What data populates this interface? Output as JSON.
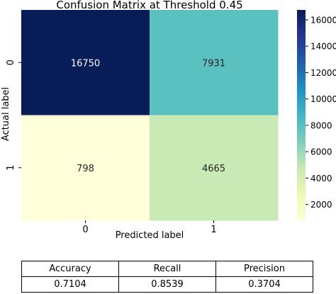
{
  "chart_data": {
    "type": "heatmap",
    "title": "Confusion Matrix at Threshold 0.45",
    "xlabel": "Predicted label",
    "ylabel": "Actual label",
    "x_categories": [
      "0",
      "1"
    ],
    "y_categories": [
      "0",
      "1"
    ],
    "values": [
      [
        16750,
        7931
      ],
      [
        798,
        4665
      ]
    ],
    "colormap": "YlGnBu",
    "colorbar": {
      "range": [
        798,
        16750
      ],
      "ticks": [
        2000,
        4000,
        6000,
        8000,
        10000,
        12000,
        14000,
        16000
      ],
      "tick_labels": [
        "2000",
        "4000",
        "6000",
        "8000",
        "10000",
        "12000",
        "14000",
        "16000"
      ]
    }
  },
  "metrics": {
    "headers": [
      "Accuracy",
      "Recall",
      "Precision"
    ],
    "values": [
      "0.7104",
      "0.8539",
      "0.3704"
    ]
  }
}
